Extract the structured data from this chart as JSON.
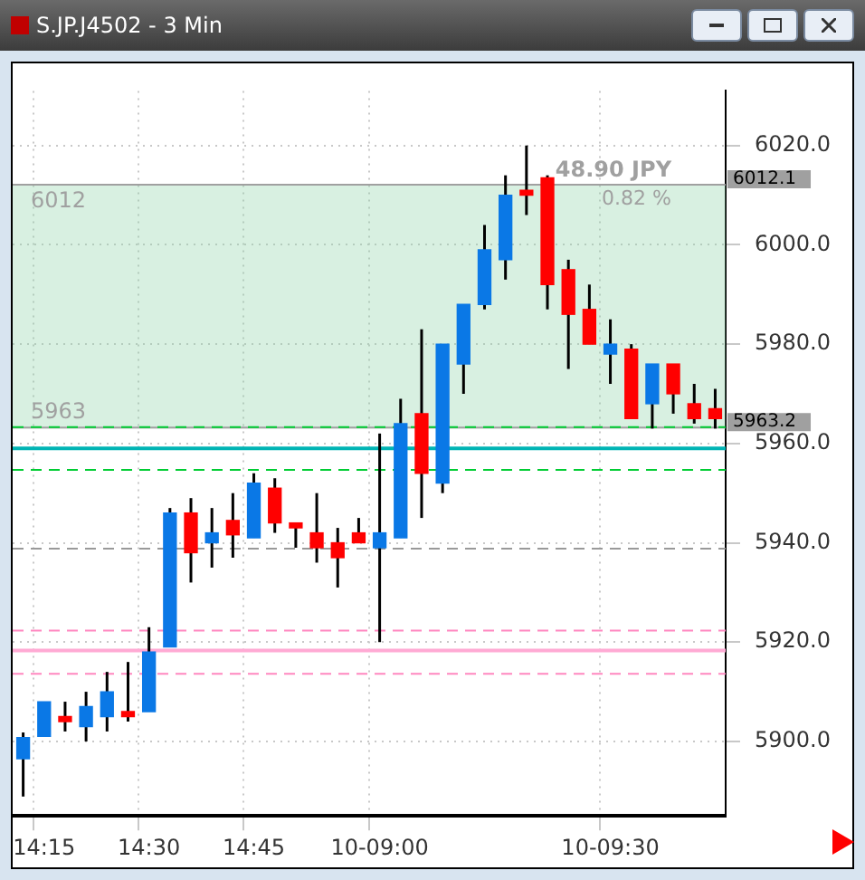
{
  "chart_data": {
    "type": "candlestick",
    "title": "S.JP.J4502 - 3 Min",
    "categories": [
      null,
      "14:15",
      null,
      null,
      null,
      null,
      "14:30",
      null,
      null,
      null,
      null,
      "14:45",
      null,
      null,
      null,
      null,
      null,
      "10-09:00",
      null,
      null,
      null,
      null,
      null,
      null,
      null,
      null,
      null,
      null,
      "10-09:30",
      null,
      null,
      null,
      null,
      null
    ],
    "ohlc": [
      [
        5896.5,
        5901.8,
        5888.9,
        5900.8
      ],
      [
        5901,
        5908,
        5901,
        5908
      ],
      [
        5905,
        5908,
        5902,
        5904
      ],
      [
        5903,
        5910,
        5900,
        5907
      ],
      [
        5905,
        5914,
        5902,
        5910
      ],
      [
        5906,
        5916,
        5904,
        5905
      ],
      [
        5906,
        5923,
        5906,
        5918
      ],
      [
        5919,
        5947,
        5919,
        5946
      ],
      [
        5946,
        5949,
        5932,
        5938
      ],
      [
        5940,
        5947,
        5935,
        5942
      ],
      [
        5944.5,
        5950,
        5937,
        5941.6
      ],
      [
        5941,
        5954,
        5941,
        5952
      ],
      [
        5951,
        5953,
        5942,
        5944
      ],
      [
        5944,
        5944,
        5939,
        5943
      ],
      [
        5942,
        5950,
        5936,
        5939
      ],
      [
        5940,
        5943,
        5931,
        5937
      ],
      [
        5942,
        5945,
        5940,
        5940
      ],
      [
        5939,
        5962,
        5920,
        5942
      ],
      [
        5941,
        5969,
        5941,
        5964
      ],
      [
        5966,
        5983,
        5945,
        5954
      ],
      [
        5952,
        5980,
        5950,
        5980
      ],
      [
        5976,
        5988,
        5970,
        5988
      ],
      [
        5988,
        6004,
        5987,
        5999
      ],
      [
        5997,
        6014,
        5993,
        6010
      ],
      [
        6011,
        6020,
        6006,
        6010
      ],
      [
        6013.5,
        6014,
        5987,
        5992
      ],
      [
        5995,
        5997,
        5975,
        5986
      ],
      [
        5987,
        5992,
        5980,
        5980
      ],
      [
        5978,
        5985,
        5972,
        5980
      ],
      [
        5979,
        5980,
        5965,
        5965
      ],
      [
        5968,
        5976,
        5963,
        5976
      ],
      [
        5976,
        5976,
        5966,
        5970
      ],
      [
        5968,
        5972,
        5964,
        5965
      ],
      [
        5967,
        5971,
        5963,
        5965
      ]
    ],
    "colors": [
      "#0a78e6",
      "#0a78e6",
      "#ff0000",
      "#0a78e6",
      "#0a78e6",
      "#ff0000",
      "#0a78e6",
      "#0a78e6",
      "#ff0000",
      "#0a78e6",
      "#ff0000",
      "#0a78e6",
      "#ff0000",
      "#ff0000",
      "#ff0000",
      "#ff0000",
      "#ff0000",
      "#0a78e6",
      "#0a78e6",
      "#ff0000",
      "#0a78e6",
      "#0a78e6",
      "#0a78e6",
      "#0a78e6",
      "#ff0000",
      "#ff0000",
      "#ff0000",
      "#ff0000",
      "#0a78e6",
      "#ff0000",
      "#0a78e6",
      "#ff0000",
      "#ff0000",
      "#ff0000"
    ],
    "ylim": [
      5885,
      6031
    ],
    "yticks": [
      {
        "value": 5900,
        "label": "5900.0"
      },
      {
        "value": 5920,
        "label": "5920.0"
      },
      {
        "value": 5940,
        "label": "5940.0"
      },
      {
        "value": 5960,
        "label": "5960.0"
      },
      {
        "value": 5980,
        "label": "5980.0"
      },
      {
        "value": 6000,
        "label": "6000.0"
      },
      {
        "value": 6020,
        "label": "6020.0"
      }
    ],
    "grid": true,
    "legend": false,
    "ref_lines": [
      {
        "axis": "y",
        "value": 6012.1,
        "label": "6012.1",
        "color": "#a0a0a0",
        "line_style": "solid"
      },
      {
        "axis": "y",
        "value": 5963.2,
        "label": "5963.2",
        "color": "#a0a0a0",
        "line_style": "solid"
      },
      {
        "axis": "y",
        "value": 5963.3,
        "color": "#00cc33",
        "line_style": "dashed"
      },
      {
        "axis": "y",
        "value": 5954.7,
        "color": "#00cc33",
        "line_style": "dashed"
      },
      {
        "axis": "y",
        "value": 5959,
        "color": "#00b4b4",
        "line_style": "solid"
      },
      {
        "axis": "y",
        "value": 5938.8,
        "color": "#999999",
        "line_style": "dashed"
      },
      {
        "axis": "y",
        "value": 5922.3,
        "color": "#ff88c0",
        "line_style": "dashed"
      },
      {
        "axis": "y",
        "value": 5918.3,
        "color": "#ffaad4",
        "line_style": "solid"
      },
      {
        "axis": "y",
        "value": 5913.6,
        "color": "#ff88c0",
        "line_style": "dashed"
      }
    ],
    "bands": [
      {
        "axis": "y",
        "from": 5963,
        "to": 6012,
        "color": "#8fd4a8"
      }
    ],
    "annotations": [
      "48.90 JPY",
      "0.82 %",
      {
        "text": "6012",
        "y": 6012
      },
      {
        "text": "5963",
        "y": 5963
      }
    ]
  }
}
